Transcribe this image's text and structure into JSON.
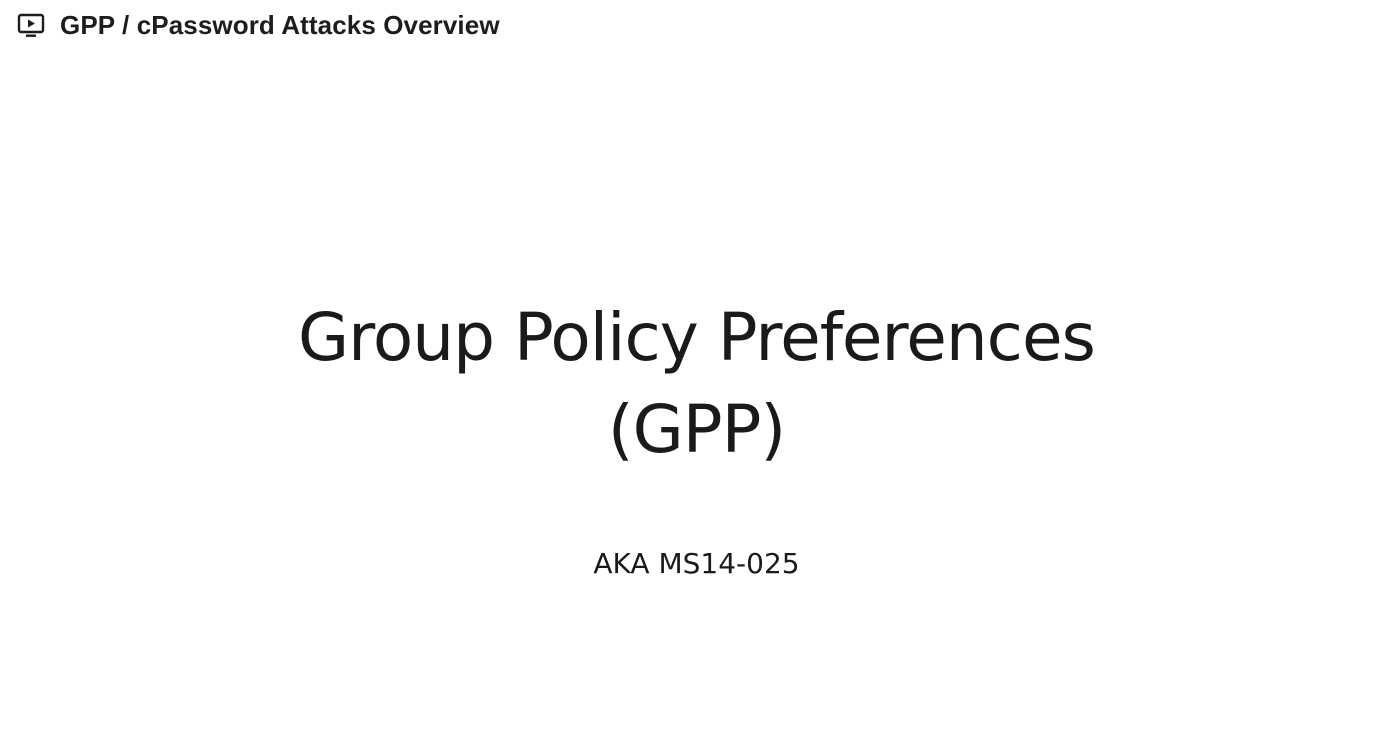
{
  "header": {
    "icon": "video-play-icon",
    "title": "GPP / cPassword Attacks Overview"
  },
  "slide": {
    "title_line1": "Group Policy Preferences",
    "title_line2": "(GPP)",
    "subtitle": "AKA MS14-025"
  }
}
